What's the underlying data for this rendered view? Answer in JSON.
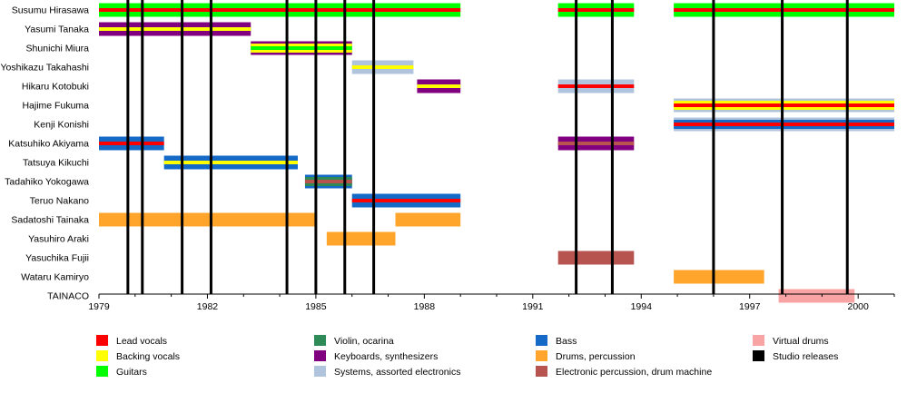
{
  "chart_data": {
    "type": "timeline",
    "xlabel": "",
    "ylabel": "",
    "xlim": [
      1979,
      2001
    ],
    "x_ticks": [
      "1979",
      "1982",
      "1985",
      "1988",
      "1991",
      "1994",
      "1997",
      "2000"
    ],
    "members": [
      "Susumu Hirasawa",
      "Yasumi Tanaka",
      "Shunichi Miura",
      "Yoshikazu Takahashi",
      "Hikaru Kotobuki",
      "Hajime Fukuma",
      "Kenji Konishi",
      "Katsuhiko Akiyama",
      "Tatsuya Kikuchi",
      "Tadahiko Yokogawa",
      "Teruo Nakano",
      "Sadatoshi Tainaka",
      "Yasuhiro Araki",
      "Yasuchika Fujii",
      "Wataru Kamiryo",
      "TAINACO"
    ],
    "studio_releases": [
      1979.8,
      1980.2,
      1981.3,
      1982.1,
      1984.2,
      1985.0,
      1985.8,
      1986.6,
      1992.2,
      1993.2,
      1996.0,
      1997.9,
      1999.7
    ],
    "tenures": [
      {
        "member": "Susumu Hirasawa",
        "start": 1979.0,
        "end": 1989.0,
        "roles": [
          "guitars",
          "lead_vocals"
        ]
      },
      {
        "member": "Susumu Hirasawa",
        "start": 1991.7,
        "end": 1993.8,
        "roles": [
          "guitars",
          "lead_vocals"
        ]
      },
      {
        "member": "Susumu Hirasawa",
        "start": 1994.9,
        "end": 2001.0,
        "roles": [
          "guitars",
          "lead_vocals"
        ]
      },
      {
        "member": "Yasumi Tanaka",
        "start": 1979.0,
        "end": 1983.2,
        "roles": [
          "keyboards",
          "backing_vocals"
        ]
      },
      {
        "member": "Shunichi Miura",
        "start": 1983.2,
        "end": 1986.0,
        "roles": [
          "keyboards",
          "backing_vocals",
          "guitars"
        ]
      },
      {
        "member": "Yoshikazu Takahashi",
        "start": 1986.0,
        "end": 1987.7,
        "roles": [
          "systems",
          "backing_vocals"
        ]
      },
      {
        "member": "Hikaru Kotobuki",
        "start": 1987.8,
        "end": 1989.0,
        "roles": [
          "keyboards",
          "backing_vocals"
        ]
      },
      {
        "member": "Hikaru Kotobuki",
        "start": 1991.7,
        "end": 1993.8,
        "roles": [
          "systems",
          "lead_vocals"
        ]
      },
      {
        "member": "Hajime Fukuma",
        "start": 1994.9,
        "end": 2001.0,
        "roles": [
          "systems",
          "backing_vocals",
          "lead_vocals"
        ]
      },
      {
        "member": "Kenji Konishi",
        "start": 1994.9,
        "end": 2001.0,
        "roles": [
          "systems",
          "bass",
          "lead_vocals"
        ]
      },
      {
        "member": "Katsuhiko Akiyama",
        "start": 1979.0,
        "end": 1980.8,
        "roles": [
          "bass",
          "lead_vocals"
        ]
      },
      {
        "member": "Katsuhiko Akiyama",
        "start": 1991.7,
        "end": 1993.8,
        "roles": [
          "keyboards",
          "electronic_percussion"
        ]
      },
      {
        "member": "Tatsuya Kikuchi",
        "start": 1980.8,
        "end": 1984.5,
        "roles": [
          "bass",
          "backing_vocals"
        ]
      },
      {
        "member": "Tadahiko Yokogawa",
        "start": 1984.7,
        "end": 1986.0,
        "roles": [
          "bass",
          "violin",
          "electronic_percussion"
        ]
      },
      {
        "member": "Teruo Nakano",
        "start": 1986.0,
        "end": 1989.0,
        "roles": [
          "bass",
          "lead_vocals"
        ]
      },
      {
        "member": "Sadatoshi Tainaka",
        "start": 1979.0,
        "end": 1985.0,
        "roles": [
          "drums"
        ]
      },
      {
        "member": "Sadatoshi Tainaka",
        "start": 1987.2,
        "end": 1989.0,
        "roles": [
          "drums"
        ]
      },
      {
        "member": "Yasuhiro Araki",
        "start": 1985.3,
        "end": 1987.2,
        "roles": [
          "drums"
        ]
      },
      {
        "member": "Yasuchika Fujii",
        "start": 1991.7,
        "end": 1993.8,
        "roles": [
          "electronic_percussion"
        ]
      },
      {
        "member": "Wataru Kamiryo",
        "start": 1994.9,
        "end": 1997.4,
        "roles": [
          "drums"
        ]
      },
      {
        "member": "TAINACO",
        "start": 1997.8,
        "end": 1999.9,
        "roles": [
          "virtual_drums"
        ]
      }
    ],
    "legend": [
      {
        "key": "lead_vocals",
        "label": "Lead vocals",
        "color": "#ff0000"
      },
      {
        "key": "violin",
        "label": "Violin, ocarina",
        "color": "#2e8b57"
      },
      {
        "key": "bass",
        "label": "Bass",
        "color": "#1569c7"
      },
      {
        "key": "virtual_drums",
        "label": "Virtual drums",
        "color": "#f9a4a4"
      },
      {
        "key": "backing_vocals",
        "label": "Backing vocals",
        "color": "#ffff00"
      },
      {
        "key": "keyboards",
        "label": "Keyboards, synthesizers",
        "color": "#800080"
      },
      {
        "key": "drums",
        "label": "Drums, percussion",
        "color": "#ffa52c"
      },
      {
        "key": "studio_releases",
        "label": "Studio releases",
        "color": "#000000"
      },
      {
        "key": "guitars",
        "label": "Guitars",
        "color": "#00ff00"
      },
      {
        "key": "systems",
        "label": "Systems, assorted electronics",
        "color": "#b0c4de"
      },
      {
        "key": "electronic_percussion",
        "label": "Electronic percussion, drum machine",
        "color": "#b85450"
      }
    ],
    "legend_placement": "bottom",
    "grid": false
  }
}
